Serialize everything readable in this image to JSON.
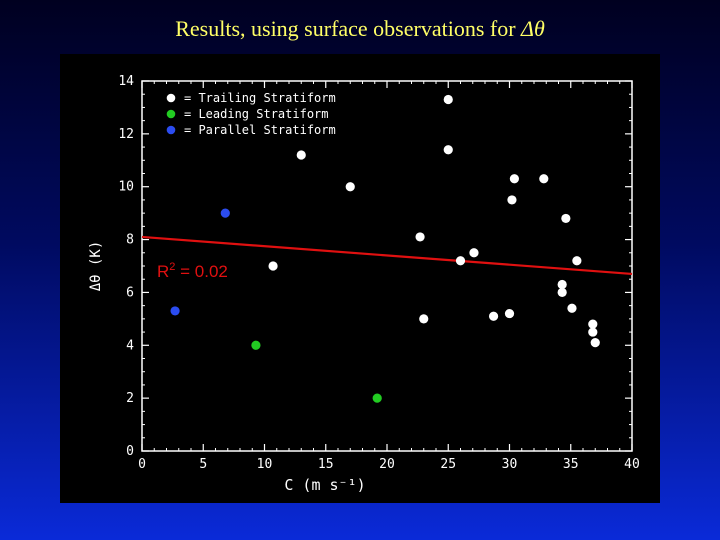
{
  "slide": {
    "title_text": "Results, using surface observations for ",
    "title_symbol": "Δθ"
  },
  "chart_data": {
    "type": "scatter",
    "title": "",
    "xlabel": "C  (m  s⁻¹)",
    "ylabel": "Δθ  (K)",
    "xlim": [
      0,
      40
    ],
    "ylim": [
      0,
      14
    ],
    "xticks": [
      0,
      5,
      10,
      15,
      20,
      25,
      30,
      35,
      40
    ],
    "yticks": [
      0,
      2,
      4,
      6,
      8,
      10,
      12,
      14
    ],
    "grid": false,
    "legend_position": "top-left",
    "series": [
      {
        "name": "Trailing Stratiform",
        "legend_label": "=  Trailing  Stratiform",
        "color": "#ffffff",
        "points": [
          [
            10.7,
            7.0
          ],
          [
            13.0,
            11.2
          ],
          [
            17.0,
            10.0
          ],
          [
            22.7,
            8.1
          ],
          [
            23.0,
            5.0
          ],
          [
            25.0,
            13.3
          ],
          [
            25.0,
            11.4
          ],
          [
            26.0,
            7.2
          ],
          [
            27.1,
            7.5
          ],
          [
            28.7,
            5.1
          ],
          [
            30.0,
            5.2
          ],
          [
            30.2,
            9.5
          ],
          [
            30.4,
            10.3
          ],
          [
            32.8,
            10.3
          ],
          [
            34.3,
            6.3
          ],
          [
            34.3,
            6.0
          ],
          [
            34.6,
            8.8
          ],
          [
            35.1,
            5.4
          ],
          [
            35.5,
            7.2
          ],
          [
            36.8,
            4.8
          ],
          [
            36.8,
            4.5
          ],
          [
            37.0,
            4.1
          ]
        ]
      },
      {
        "name": "Leading Stratiform",
        "legend_label": "=  Leading  Stratiform",
        "color": "#22cc22",
        "points": [
          [
            9.3,
            4.0
          ],
          [
            19.2,
            2.0
          ]
        ]
      },
      {
        "name": "Parallel Stratiform",
        "legend_label": "=  Parallel  Stratiform",
        "color": "#2b4cf0",
        "points": [
          [
            2.7,
            5.3
          ],
          [
            6.8,
            9.0
          ]
        ]
      }
    ],
    "fit_line": {
      "color": "#e01010",
      "x": [
        0,
        40
      ],
      "y": [
        8.1,
        6.7
      ],
      "r2_prefix": "R",
      "r2_exp": "2",
      "r2_value": " = 0.02"
    }
  }
}
